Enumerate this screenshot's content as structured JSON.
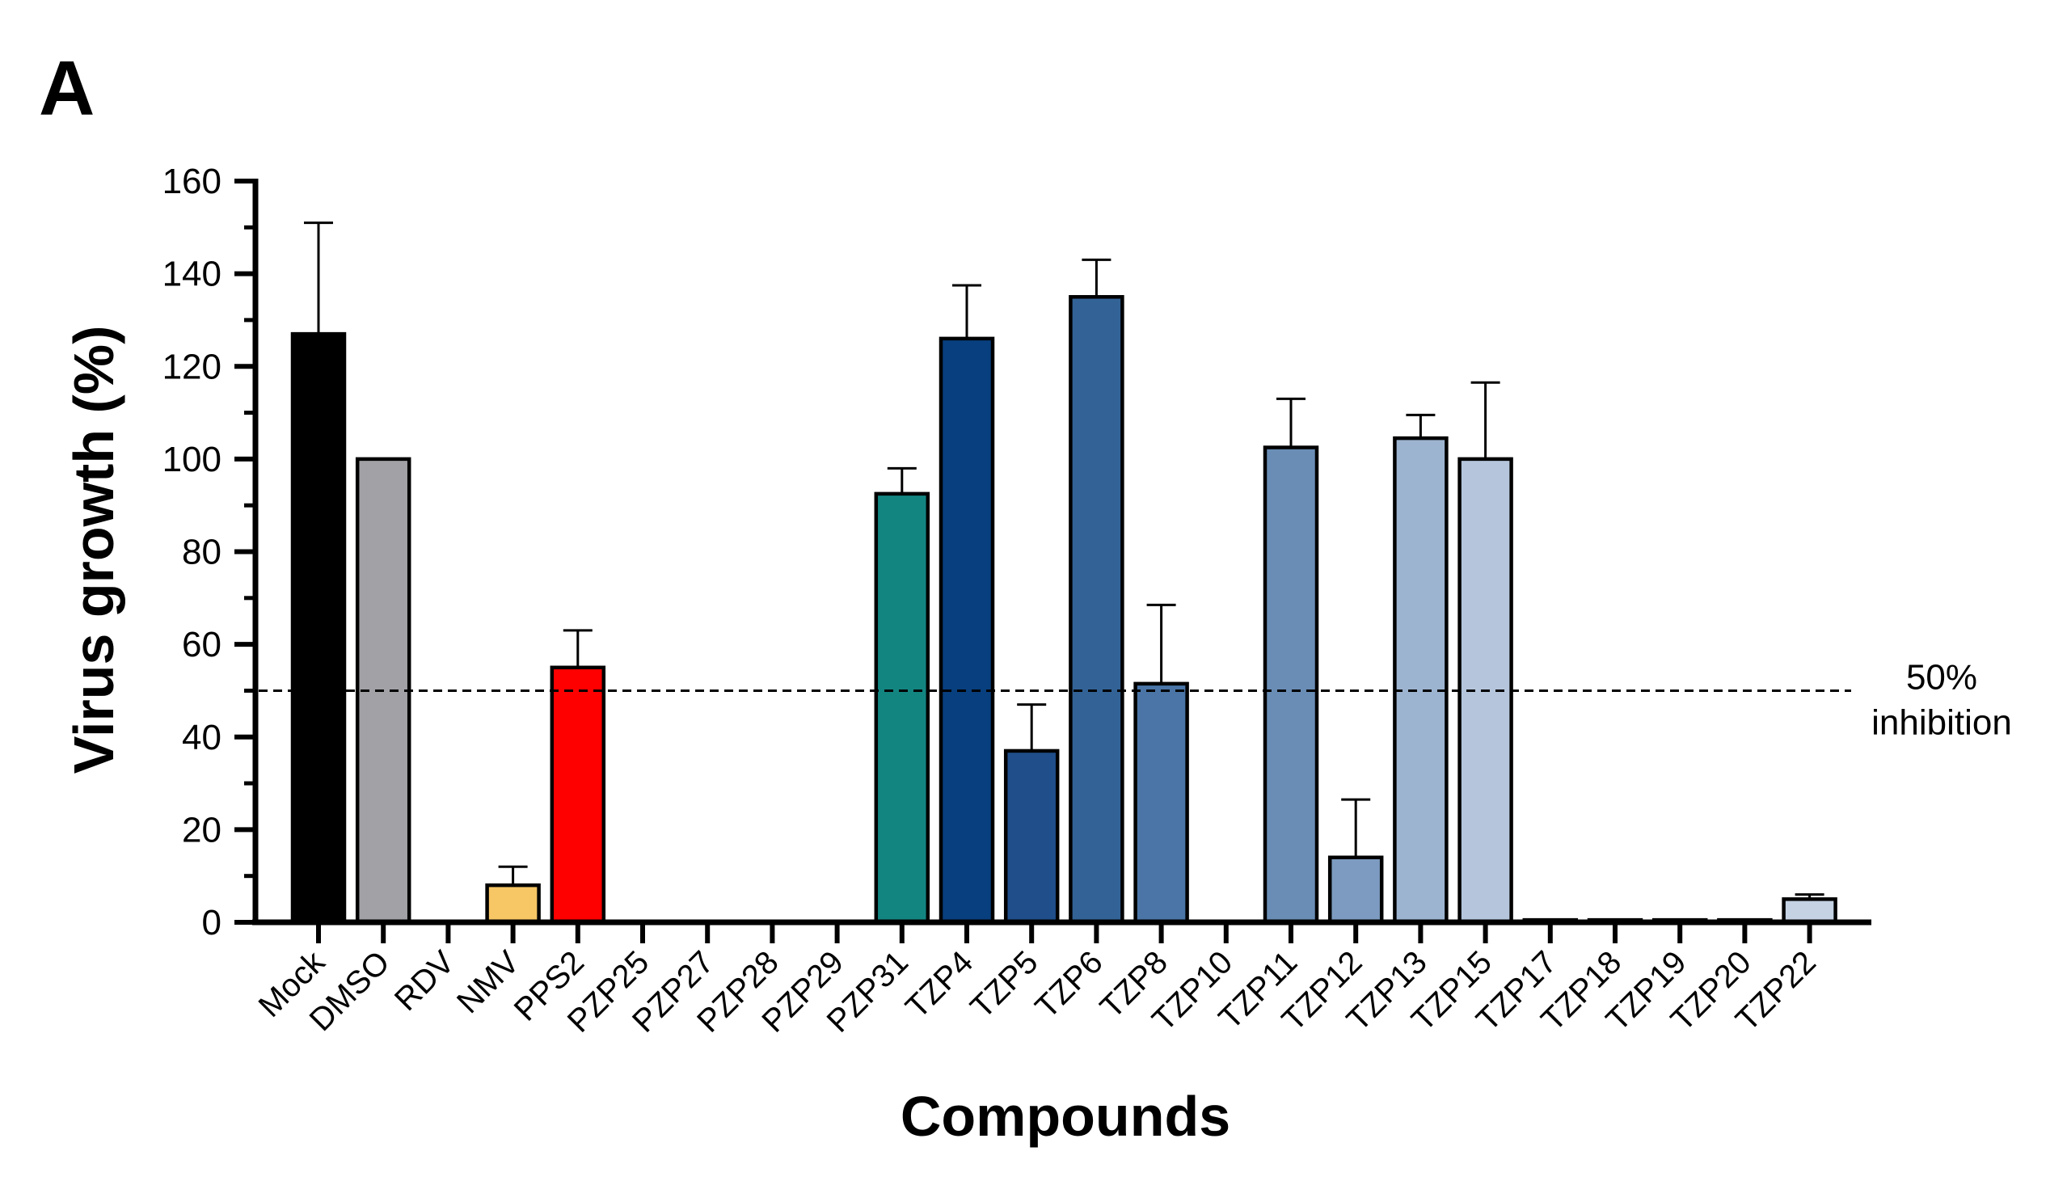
{
  "panel_label": "A",
  "chart_data": {
    "type": "bar",
    "title": "",
    "xlabel": "Compounds",
    "ylabel": "Virus growth (%)",
    "ylim": [
      0,
      160
    ],
    "yticks": [
      0,
      20,
      40,
      60,
      80,
      100,
      120,
      140,
      160
    ],
    "grid": false,
    "legend": "none",
    "categories": [
      "Mock",
      "DMSO",
      "RDV",
      "NMV",
      "PPS2",
      "PZP25",
      "PZP27",
      "PZP28",
      "PZP29",
      "PZP31",
      "TZP4",
      "TZP5",
      "TZP6",
      "TZP8",
      "TZP10",
      "TZP11",
      "TZP12",
      "TZP13",
      "TZP15",
      "TZP17",
      "TZP18",
      "TZP19",
      "TZP20",
      "TZP22"
    ],
    "values": [
      127,
      100,
      0,
      8,
      55,
      0,
      0,
      0,
      0,
      92.5,
      126,
      37,
      135,
      51.5,
      0,
      102.5,
      14,
      104.5,
      100,
      0.5,
      0.5,
      0.5,
      0.5,
      5
    ],
    "errors": [
      24,
      0,
      0,
      4,
      8,
      0,
      0,
      0,
      0,
      5.5,
      11.5,
      10,
      8,
      17,
      0,
      10.5,
      12.5,
      5,
      16.5,
      0,
      0,
      0,
      0,
      1
    ],
    "colors": [
      "#000000",
      "#a1a1a6",
      "#ffffff",
      "#f7c665",
      "#ff0000",
      "#ffffff",
      "#ffffff",
      "#ffffff",
      "#ffffff",
      "#138581",
      "#083f7e",
      "#1f4e8a",
      "#336396",
      "#4a75a6",
      "#ffffff",
      "#6a8db5",
      "#7d9bc0",
      "#9db4d0",
      "#b5c6dc",
      "#c4d2e3",
      "#c4d2e3",
      "#c4d2e3",
      "#c4d2e3",
      "#c4d2e3"
    ],
    "reference_line": {
      "y": 50,
      "style": "dashed",
      "label_lines": [
        "50%",
        "inhibition"
      ]
    }
  }
}
